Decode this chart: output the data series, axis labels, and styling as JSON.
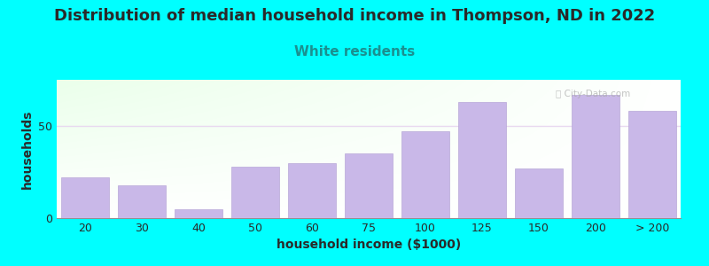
{
  "title": "Distribution of median household income in Thompson, ND in 2022",
  "subtitle": "White residents",
  "xlabel": "household income ($1000)",
  "ylabel": "households",
  "background_color": "#00FFFF",
  "bar_color": "#c9b8e8",
  "bar_edge_color": "#b8a8d8",
  "categories": [
    "20",
    "30",
    "40",
    "50",
    "60",
    "75",
    "100",
    "125",
    "150",
    "200",
    "> 200"
  ],
  "values": [
    22,
    18,
    5,
    28,
    30,
    35,
    47,
    63,
    27,
    67,
    58
  ],
  "ylim": [
    0,
    75
  ],
  "yticks": [
    0,
    50
  ],
  "title_fontsize": 13,
  "subtitle_fontsize": 11,
  "subtitle_color": "#1a9090",
  "axis_label_fontsize": 10,
  "watermark": "City-Data.com",
  "title_color": "#2a2a2a",
  "grid_color": "#e8d8f0",
  "tick_fontsize": 9
}
